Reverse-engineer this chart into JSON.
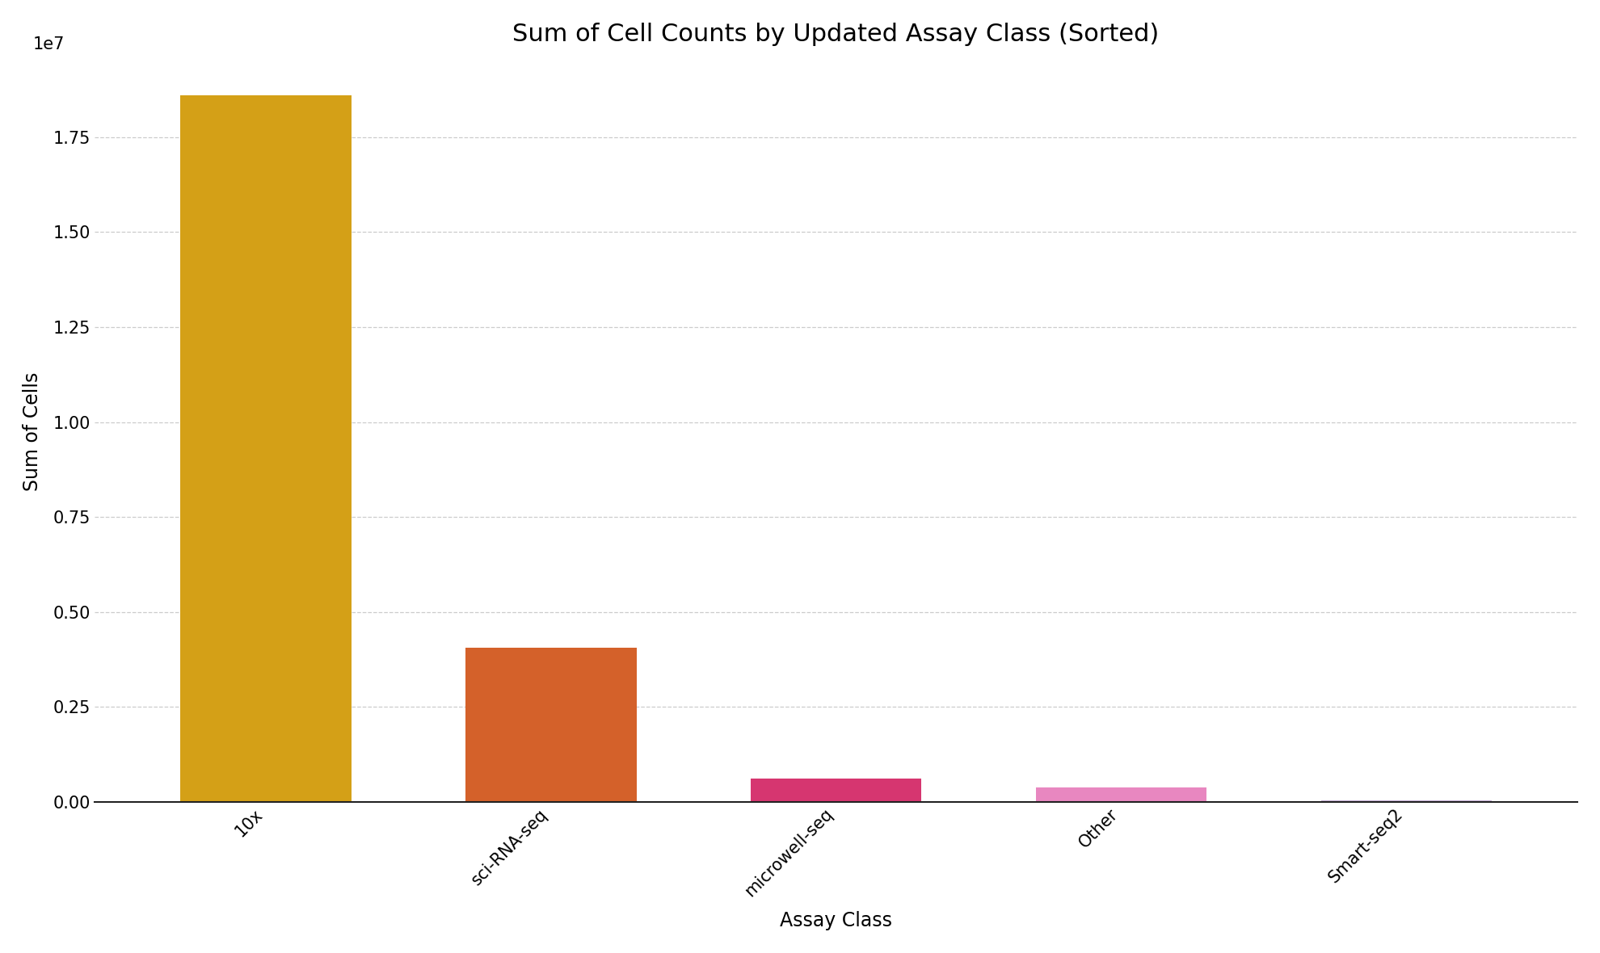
{
  "categories": [
    "10x",
    "sci-RNA-seq",
    "microwell-seq",
    "Other",
    "Smart-seq2"
  ],
  "values": [
    18600000,
    4050000,
    620000,
    390000,
    50000
  ],
  "bar_colors": [
    "#D4A017",
    "#D4612A",
    "#D63670",
    "#E887C0",
    "#C8B0D8"
  ],
  "title": "Sum of Cell Counts by Updated Assay Class (Sorted)",
  "xlabel": "Assay Class",
  "ylabel": "Sum of Cells",
  "ylim": [
    0,
    19500000.0
  ],
  "yticks": [
    0.0,
    0.25,
    0.5,
    0.75,
    1.0,
    1.25,
    1.5,
    1.75
  ],
  "title_fontsize": 22,
  "axis_label_fontsize": 17,
  "tick_fontsize": 15,
  "background_color": "#ffffff",
  "bar_width": 0.6,
  "grid_color": "#aaaaaa",
  "spine_color": "#222222"
}
